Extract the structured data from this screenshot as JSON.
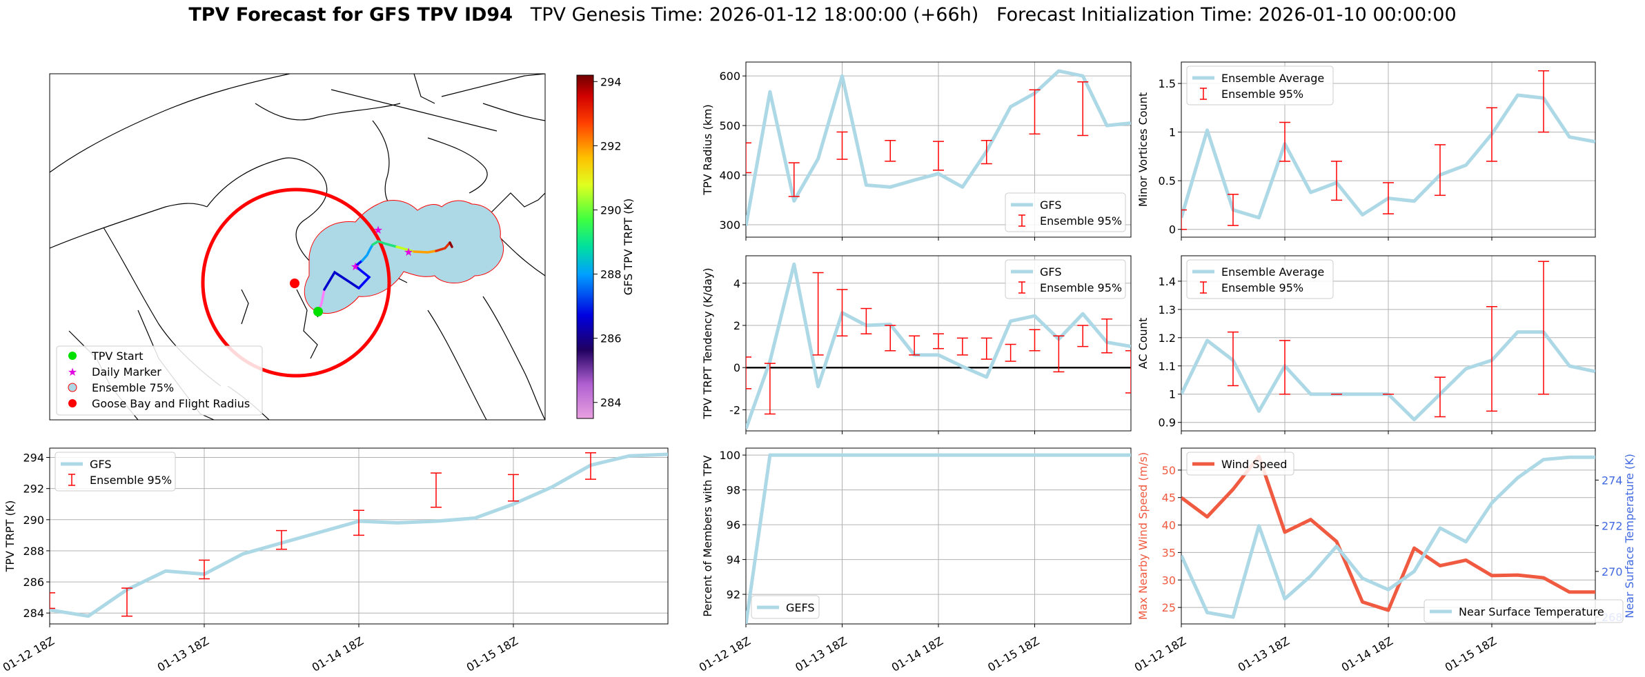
{
  "title": {
    "bold": "TPV Forecast for GFS TPV ID94",
    "genesis": "TPV Genesis Time: 2026-01-12 18:00:00 (+66h)",
    "init": "Forecast Initialization Time: 2026-01-10 00:00:00"
  },
  "x_ticks": [
    "01-12 18Z",
    "01-13 18Z",
    "01-14 18Z",
    "01-15 18Z"
  ],
  "colors": {
    "gfs_line": "#add8e6",
    "errorbar": "#ff0000",
    "wind_line": "#f05a40",
    "wind_axis": "#f05a40",
    "temp_axis": "#4169e1",
    "ensemble_fill": "#add8e6",
    "radius_circle": "#ff0000"
  },
  "map": {
    "legend": [
      "TPV Start",
      "Daily Marker",
      "Ensemble 75%",
      "Goose Bay and Flight Radius"
    ],
    "colorbar": {
      "label": "GFS TPV TRPT (K)",
      "ticks": [
        284,
        286,
        288,
        290,
        292,
        294
      ],
      "range": [
        283.5,
        294.2
      ]
    }
  },
  "chart_data": [
    {
      "id": "radius",
      "type": "line",
      "ylabel": "TPV Radius (km)",
      "ylim": [
        275,
        628
      ],
      "yticks": [
        300,
        400,
        500,
        600
      ],
      "legend": [
        "GFS",
        "Ensemble 95%"
      ],
      "legend_loc": "lower-right",
      "x": [
        0,
        1,
        2,
        3,
        4,
        5,
        6,
        7,
        8,
        9,
        10,
        11,
        12,
        13,
        14,
        15,
        16
      ],
      "series": [
        {
          "name": "GFS",
          "values": [
            298,
            568,
            348,
            433,
            600,
            380,
            376,
            390,
            403,
            376,
            448,
            538,
            565,
            610,
            600,
            500,
            505
          ]
        }
      ],
      "errorbars": [
        {
          "x": 0,
          "low": 405,
          "high": 465
        },
        {
          "x": 2,
          "low": 357,
          "high": 425
        },
        {
          "x": 4,
          "low": 432,
          "high": 487
        },
        {
          "x": 6,
          "low": 428,
          "high": 470
        },
        {
          "x": 8,
          "low": 410,
          "high": 468
        },
        {
          "x": 10,
          "low": 423,
          "high": 470
        },
        {
          "x": 12,
          "low": 483,
          "high": 572
        },
        {
          "x": 14,
          "low": 480,
          "high": 588
        }
      ]
    },
    {
      "id": "minor",
      "type": "line",
      "ylabel": "Minor Vortices Count",
      "ylim": [
        -0.08,
        1.72
      ],
      "yticks": [
        0.0,
        0.5,
        1.0,
        1.5
      ],
      "legend": [
        "Ensemble Average",
        "Ensemble 95%"
      ],
      "legend_loc": "upper-left",
      "x": [
        0,
        1,
        2,
        3,
        4,
        5,
        6,
        7,
        8,
        9,
        10,
        11,
        12,
        13,
        14,
        15,
        16
      ],
      "series": [
        {
          "name": "Ensemble Average",
          "values": [
            0.12,
            1.02,
            0.2,
            0.12,
            0.88,
            0.38,
            0.48,
            0.15,
            0.32,
            0.29,
            0.56,
            0.66,
            0.98,
            1.38,
            1.35,
            0.95,
            0.9
          ]
        }
      ],
      "errorbars": [
        {
          "x": 0,
          "low": 0.0,
          "high": 0.2
        },
        {
          "x": 2,
          "low": 0.04,
          "high": 0.36
        },
        {
          "x": 4,
          "low": 0.7,
          "high": 1.1
        },
        {
          "x": 6,
          "low": 0.3,
          "high": 0.7
        },
        {
          "x": 8,
          "low": 0.16,
          "high": 0.48
        },
        {
          "x": 10,
          "low": 0.35,
          "high": 0.87
        },
        {
          "x": 12,
          "low": 0.7,
          "high": 1.25
        },
        {
          "x": 14,
          "low": 1.0,
          "high": 1.63
        }
      ]
    },
    {
      "id": "tendency",
      "type": "line",
      "ylabel": "TPV TRPT Tendency (K/day)",
      "ylim": [
        -3.0,
        5.3
      ],
      "yticks": [
        -2,
        0,
        2,
        4
      ],
      "zero_line": 0,
      "legend": [
        "GFS",
        "Ensemble 95%"
      ],
      "legend_loc": "upper-right",
      "x": [
        0,
        1,
        2,
        3,
        4,
        5,
        6,
        7,
        8,
        9,
        10,
        11,
        12,
        13,
        14,
        15,
        16
      ],
      "series": [
        {
          "name": "GFS",
          "values": [
            -2.9,
            0.3,
            4.9,
            -0.9,
            2.6,
            2.0,
            2.05,
            0.6,
            0.6,
            0.05,
            -0.45,
            2.2,
            2.45,
            1.35,
            2.55,
            1.2,
            1.0
          ]
        }
      ],
      "errorbars": [
        {
          "x": 0,
          "low": -1.0,
          "high": 0.5
        },
        {
          "x": 1,
          "low": -2.2,
          "high": 0.2
        },
        {
          "x": 3,
          "low": 0.6,
          "high": 4.5
        },
        {
          "x": 4,
          "low": 1.5,
          "high": 3.7
        },
        {
          "x": 5,
          "low": 1.6,
          "high": 2.8
        },
        {
          "x": 6,
          "low": 0.8,
          "high": 2.0
        },
        {
          "x": 7,
          "low": 0.6,
          "high": 1.5
        },
        {
          "x": 8,
          "low": 0.9,
          "high": 1.6
        },
        {
          "x": 9,
          "low": 0.6,
          "high": 1.4
        },
        {
          "x": 10,
          "low": 0.4,
          "high": 1.4
        },
        {
          "x": 11,
          "low": 0.3,
          "high": 1.1
        },
        {
          "x": 12,
          "low": 0.8,
          "high": 1.8
        },
        {
          "x": 13,
          "low": -0.2,
          "high": 1.5
        },
        {
          "x": 14,
          "low": 1.0,
          "high": 2.0
        },
        {
          "x": 15,
          "low": 0.7,
          "high": 2.3
        },
        {
          "x": 16,
          "low": -1.2,
          "high": 0.8
        }
      ]
    },
    {
      "id": "ac",
      "type": "line",
      "ylabel": "AC Count",
      "ylim": [
        0.87,
        1.49
      ],
      "yticks": [
        0.9,
        1.0,
        1.1,
        1.2,
        1.3,
        1.4
      ],
      "legend": [
        "Ensemble Average",
        "Ensemble 95%"
      ],
      "legend_loc": "upper-left",
      "x": [
        0,
        1,
        2,
        3,
        4,
        5,
        6,
        7,
        8,
        9,
        10,
        11,
        12,
        13,
        14,
        15,
        16
      ],
      "series": [
        {
          "name": "Ensemble Average",
          "values": [
            1.0,
            1.19,
            1.12,
            0.94,
            1.1,
            1.0,
            1.0,
            1.0,
            1.0,
            0.91,
            1.0,
            1.09,
            1.12,
            1.22,
            1.22,
            1.1,
            1.08
          ]
        }
      ],
      "errorbars": [
        {
          "x": 2,
          "low": 1.03,
          "high": 1.22
        },
        {
          "x": 4,
          "low": 1.0,
          "high": 1.19
        },
        {
          "x": 6,
          "low": 1.0,
          "high": 1.0
        },
        {
          "x": 8,
          "low": 1.0,
          "high": 1.0
        },
        {
          "x": 10,
          "low": 0.92,
          "high": 1.06
        },
        {
          "x": 12,
          "low": 0.94,
          "high": 1.31
        },
        {
          "x": 14,
          "low": 1.0,
          "high": 1.47
        }
      ]
    },
    {
      "id": "trpt",
      "type": "line",
      "ylabel": "TPV TRPT (K)",
      "ylim": [
        283.3,
        294.6
      ],
      "yticks": [
        284,
        286,
        288,
        290,
        292,
        294
      ],
      "legend": [
        "GFS",
        "Ensemble 95%"
      ],
      "legend_loc": "upper-left",
      "x": [
        0,
        1,
        2,
        3,
        4,
        5,
        6,
        7,
        8,
        9,
        10,
        11,
        12,
        13,
        14,
        15,
        16
      ],
      "series": [
        {
          "name": "GFS",
          "values": [
            284.2,
            283.8,
            285.5,
            286.7,
            286.5,
            287.8,
            288.5,
            289.2,
            289.9,
            289.8,
            289.9,
            290.1,
            291.0,
            292.1,
            293.5,
            294.1,
            294.2
          ]
        }
      ],
      "errorbars": [
        {
          "x": 0,
          "low": 284.3,
          "high": 285.3
        },
        {
          "x": 2,
          "low": 283.8,
          "high": 285.6
        },
        {
          "x": 4,
          "low": 286.2,
          "high": 287.4
        },
        {
          "x": 6,
          "low": 288.1,
          "high": 289.3
        },
        {
          "x": 8,
          "low": 289.0,
          "high": 290.6
        },
        {
          "x": 10,
          "low": 290.8,
          "high": 293.0
        },
        {
          "x": 12,
          "low": 291.2,
          "high": 292.9
        },
        {
          "x": 14,
          "low": 292.6,
          "high": 294.3
        }
      ]
    },
    {
      "id": "percent",
      "type": "line",
      "ylabel": "Percent of Members with TPV",
      "ylim": [
        90.3,
        100.4
      ],
      "yticks": [
        92,
        94,
        96,
        98,
        100
      ],
      "legend": [
        "GEFS"
      ],
      "legend_loc": "lower-left",
      "x": [
        0,
        1,
        2,
        3,
        4,
        5,
        6,
        7,
        8,
        9,
        10,
        11,
        12,
        13,
        14,
        15,
        16
      ],
      "series": [
        {
          "name": "GEFS",
          "values": [
            90.3,
            100,
            100,
            100,
            100,
            100,
            100,
            100,
            100,
            100,
            100,
            100,
            100,
            100,
            100,
            100,
            100
          ]
        }
      ]
    },
    {
      "id": "wind_temp",
      "type": "line",
      "ylabel": "Max Nearby Wind Speed (m/s)",
      "ylabel_right": "Near Surface Temperature (K)",
      "ylim": [
        22,
        54
      ],
      "yticks": [
        25,
        30,
        35,
        40,
        45,
        50
      ],
      "ylim_right": [
        267.7,
        275.4
      ],
      "yticks_right": [
        268,
        270,
        272,
        274
      ],
      "legend": [
        "Wind Speed",
        "Near Surface Temperature"
      ],
      "x": [
        0,
        1,
        2,
        3,
        4,
        5,
        6,
        7,
        8,
        9,
        10,
        11,
        12,
        13,
        14,
        15,
        16
      ],
      "series": [
        {
          "name": "Wind Speed",
          "axis": "left",
          "values": [
            45,
            41.5,
            46.5,
            52.5,
            38.7,
            41,
            37,
            26,
            24.5,
            35.8,
            32.6,
            33.6,
            30.8,
            30.9,
            30.4,
            27.8,
            27.8
          ]
        },
        {
          "name": "Near Surface Temperature",
          "axis": "right",
          "values": [
            270.7,
            268.2,
            268.0,
            272.0,
            268.8,
            269.8,
            271.1,
            269.7,
            269.2,
            270.0,
            271.9,
            271.3,
            273.0,
            274.1,
            274.9,
            275.0,
            275.0
          ]
        }
      ]
    }
  ]
}
